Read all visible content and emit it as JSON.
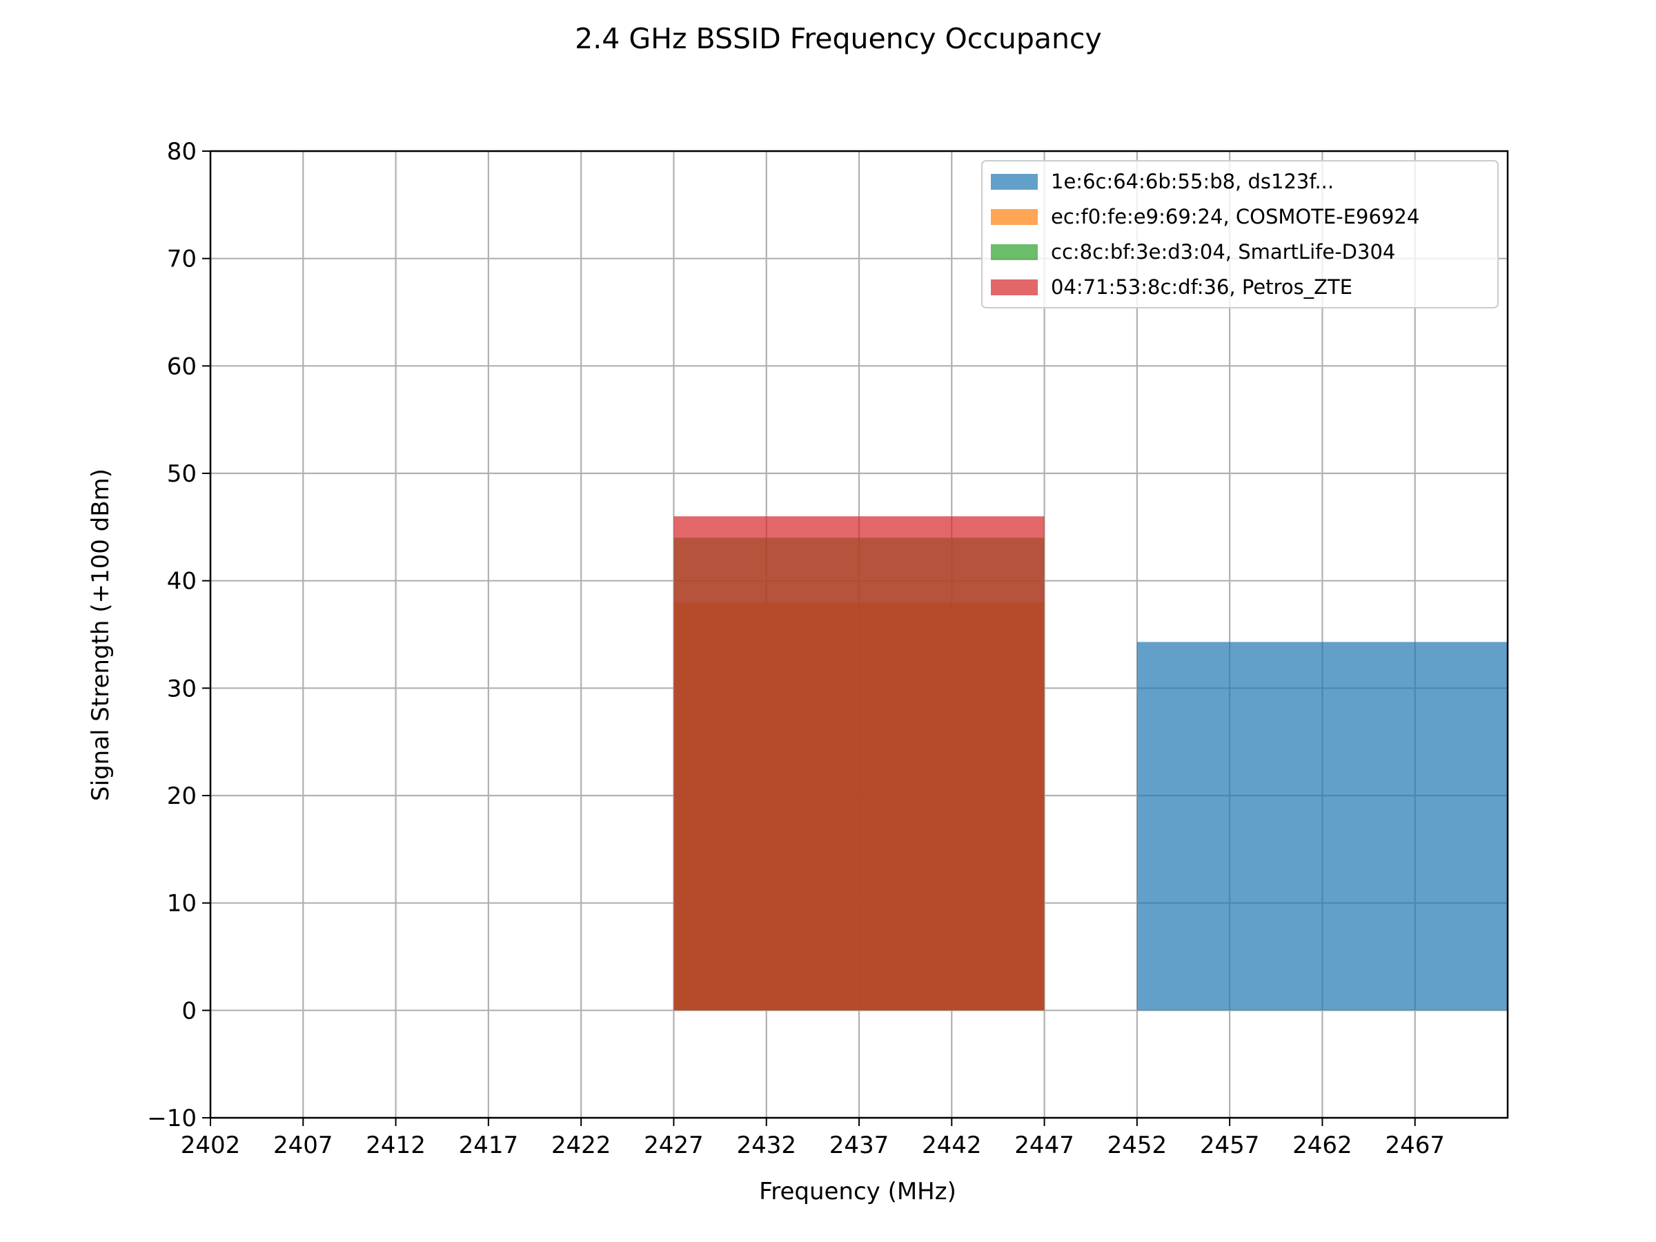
{
  "chart_data": {
    "type": "area",
    "title": "2.4 GHz BSSID Frequency Occupancy",
    "xlabel": "Frequency (MHz)",
    "ylabel": "Signal Strength (+100 dBm)",
    "xlim": [
      2402,
      2472
    ],
    "ylim": [
      -10,
      80
    ],
    "xticks": [
      2402,
      2407,
      2412,
      2417,
      2422,
      2427,
      2432,
      2437,
      2442,
      2447,
      2452,
      2457,
      2462,
      2467
    ],
    "yticks": [
      -10,
      0,
      10,
      20,
      30,
      40,
      50,
      60,
      70,
      80
    ],
    "grid": true,
    "legend_position": "upper right",
    "series": [
      {
        "name": "1e:6c:64:6b:55:b8, ds123f...",
        "color": "#1f77b4",
        "x_range": [
          2452,
          2472
        ],
        "value": 34.3
      },
      {
        "name": "ec:f0:fe:e9:69:24, COSMOTE-E96924",
        "color": "#ff7f0e",
        "x_range": [
          2427,
          2447
        ],
        "value": 38
      },
      {
        "name": "cc:8c:bf:3e:d3:04, SmartLife-D304",
        "color": "#2ca02c",
        "x_range": [
          2427,
          2447
        ],
        "value": 44
      },
      {
        "name": "04:71:53:8c:df:36, Petros_ZTE",
        "color": "#d62728",
        "x_range": [
          2427,
          2447
        ],
        "value": 46
      }
    ]
  }
}
